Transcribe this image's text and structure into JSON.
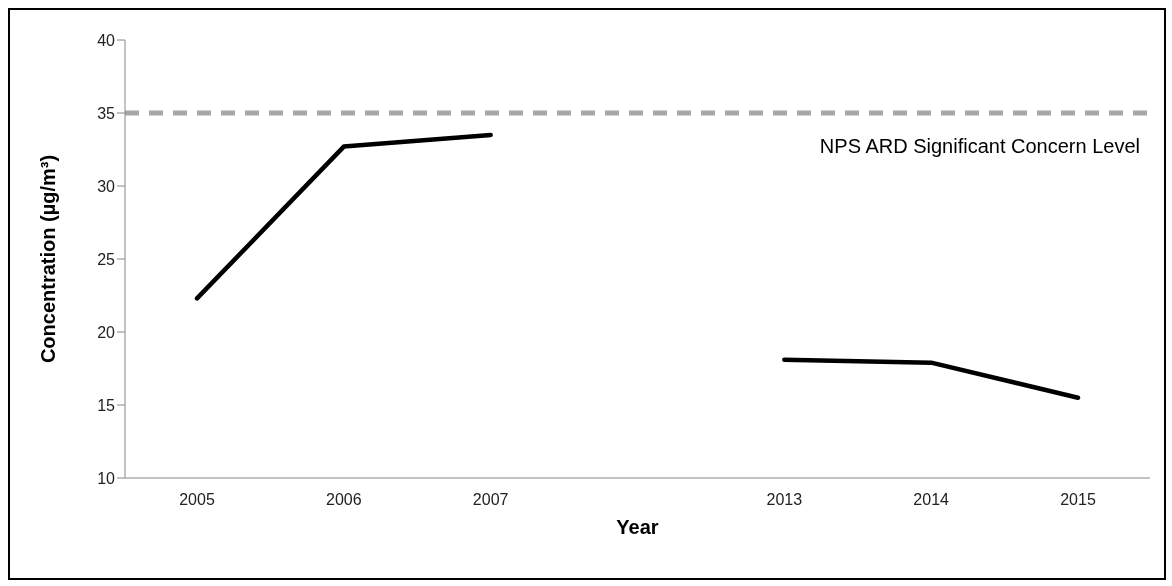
{
  "chart_data": {
    "type": "line",
    "xlabel": "Year",
    "ylabel": "Concentration (µg/m³)",
    "categories": [
      "2005",
      "2006",
      "2007",
      null,
      "2013",
      "2014",
      "2015"
    ],
    "series": [
      {
        "color": "#000000",
        "values": [
          22.3,
          32.7,
          33.5,
          null,
          18.1,
          17.9,
          15.5
        ]
      }
    ],
    "ylim": [
      10,
      40
    ],
    "yticks": [
      10,
      15,
      20,
      25,
      30,
      35,
      40
    ],
    "ref_lines": [
      {
        "axis": "y",
        "value": 35,
        "label": "NPS ARD Significant Concern Level",
        "color": "#a6a6a6",
        "line_style": "dashed"
      }
    ],
    "grid": false,
    "legend": false,
    "marker": "none",
    "line_style": "solid"
  }
}
